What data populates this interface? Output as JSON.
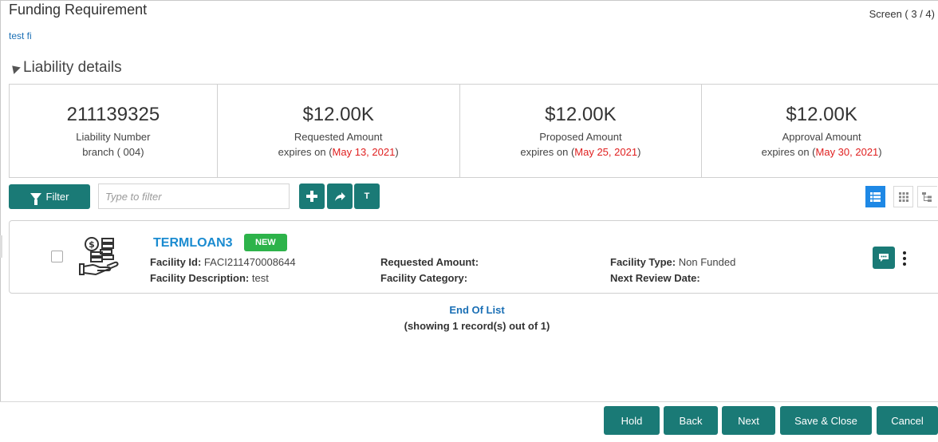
{
  "header": {
    "title": "Funding Requirement",
    "screen_indicator": "Screen ( 3 / 4)",
    "subtitle": "test fi"
  },
  "section": {
    "title": "Liability details"
  },
  "summary_cards": [
    {
      "value": "211139325",
      "label": "Liability Number",
      "line2_prefix": "branch ( 004)",
      "line2_date": "",
      "line2_suffix": ""
    },
    {
      "value": "$12.00K",
      "label": "Requested Amount",
      "line2_prefix": "expires on (",
      "line2_date": "May 13, 2021",
      "line2_suffix": ")"
    },
    {
      "value": "$12.00K",
      "label": "Proposed Amount",
      "line2_prefix": "expires on (",
      "line2_date": "May 25, 2021",
      "line2_suffix": ")"
    },
    {
      "value": "$12.00K",
      "label": "Approval Amount",
      "line2_prefix": "expires on (",
      "line2_date": "May 30, 2021",
      "line2_suffix": ")"
    }
  ],
  "toolbar": {
    "filter_label": "Filter",
    "filter_placeholder": "Type to filter",
    "text_button_label": "T"
  },
  "record": {
    "title": "TERMLOAN3",
    "badge": "NEW",
    "facility_id_label": "Facility Id:",
    "facility_id_value": "FACI211470008644",
    "facility_desc_label": "Facility Description:",
    "facility_desc_value": "test",
    "requested_amount_label": "Requested Amount:",
    "requested_amount_value": "",
    "facility_category_label": "Facility Category:",
    "facility_category_value": "",
    "facility_type_label": "Facility Type:",
    "facility_type_value": "Non Funded",
    "next_review_label": "Next Review Date:",
    "next_review_value": ""
  },
  "list_status": {
    "end_label": "End Of List",
    "count_text": "(showing 1 record(s) out of 1)"
  },
  "footer": {
    "hold": "Hold",
    "back": "Back",
    "next": "Next",
    "save_close": "Save & Close",
    "cancel": "Cancel"
  },
  "colors": {
    "primary": "#1a7a76",
    "link": "#1a8bd0",
    "badge": "#2db34a",
    "date_red": "#e02020",
    "view_active": "#1e88e5"
  }
}
